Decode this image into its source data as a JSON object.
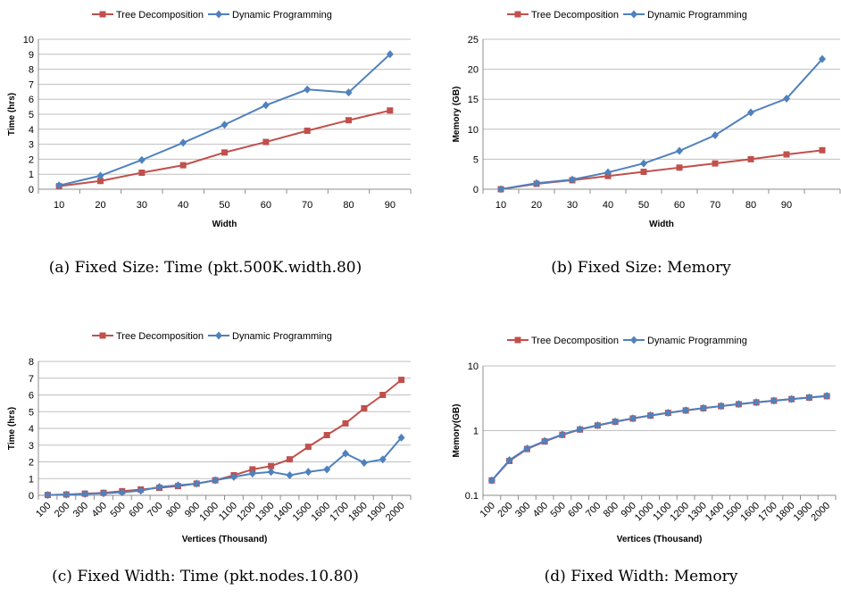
{
  "colors": {
    "td": "#c0504d",
    "dp": "#4f81bd"
  },
  "chart_data": [
    {
      "id": "a",
      "type": "line",
      "caption": "(a) Fixed Size: Time (pkt.500K.width.80)",
      "xlabel": "Width",
      "ylabel": "Time (hrs)",
      "categories": [
        "10",
        "20",
        "30",
        "40",
        "50",
        "60",
        "70",
        "80",
        "90"
      ],
      "ylim": [
        0,
        10
      ],
      "yticks": [
        0,
        1,
        2,
        3,
        4,
        5,
        6,
        7,
        8,
        9,
        10
      ],
      "yscale": "linear",
      "legend": "top",
      "grid": true,
      "series": [
        {
          "name": "Tree Decomposition",
          "marker": "square",
          "values": [
            0.2,
            0.55,
            1.1,
            1.6,
            2.45,
            3.15,
            3.9,
            4.6,
            5.25
          ]
        },
        {
          "name": "Dynamic Programming",
          "marker": "diamond",
          "values": [
            0.25,
            0.9,
            1.95,
            3.1,
            4.3,
            5.6,
            6.65,
            6.45,
            9.0
          ]
        }
      ]
    },
    {
      "id": "b",
      "type": "line",
      "caption": "(b) Fixed Size: Memory",
      "xlabel": "Width",
      "ylabel": "Memory (GB)",
      "categories": [
        "10",
        "20",
        "30",
        "40",
        "50",
        "60",
        "70",
        "80",
        "90",
        ""
      ],
      "ylim": [
        0,
        25
      ],
      "yticks": [
        0,
        5,
        10,
        15,
        20,
        25
      ],
      "yscale": "linear",
      "legend": "top",
      "grid": true,
      "series": [
        {
          "name": "Tree Decomposition",
          "marker": "square",
          "values": [
            0.0,
            0.9,
            1.5,
            2.2,
            2.9,
            3.6,
            4.3,
            5.0,
            5.8,
            6.5
          ]
        },
        {
          "name": "Dynamic Programming",
          "marker": "diamond",
          "values": [
            0.0,
            1.0,
            1.6,
            2.8,
            4.3,
            6.4,
            9.0,
            12.8,
            15.1,
            21.7
          ]
        }
      ]
    },
    {
      "id": "c",
      "type": "line",
      "caption": "(c) Fixed Width: Time (pkt.nodes.10.80)",
      "xlabel": "Vertices (Thousand)",
      "ylabel": "Time (hrs)",
      "categories": [
        "100",
        "200",
        "300",
        "400",
        "500",
        "600",
        "700",
        "800",
        "900",
        "1000",
        "1100",
        "1200",
        "1300",
        "1400",
        "1500",
        "1600",
        "1700",
        "1800",
        "1900",
        "2000"
      ],
      "ylim": [
        0,
        8
      ],
      "yticks": [
        0,
        1,
        2,
        3,
        4,
        5,
        6,
        7,
        8
      ],
      "yscale": "linear",
      "legend": "top",
      "grid": true,
      "series": [
        {
          "name": "Tree Decomposition",
          "marker": "square",
          "values": [
            0.02,
            0.05,
            0.1,
            0.15,
            0.25,
            0.35,
            0.45,
            0.55,
            0.7,
            0.9,
            1.2,
            1.55,
            1.75,
            2.15,
            2.9,
            3.6,
            4.3,
            5.2,
            6.0,
            6.9
          ]
        },
        {
          "name": "Dynamic Programming",
          "marker": "diamond",
          "values": [
            0.02,
            0.04,
            0.08,
            0.12,
            0.18,
            0.28,
            0.5,
            0.6,
            0.7,
            0.9,
            1.1,
            1.3,
            1.4,
            1.2,
            1.4,
            1.55,
            2.5,
            1.95,
            2.15,
            3.45
          ]
        }
      ]
    },
    {
      "id": "d",
      "type": "line",
      "caption": "(d) Fixed Width: Memory",
      "xlabel": "Vertices (Thousand)",
      "ylabel": "Memory(GB)",
      "categories": [
        "100",
        "200",
        "300",
        "400",
        "500",
        "600",
        "700",
        "800",
        "900",
        "1000",
        "1100",
        "1200",
        "1300",
        "1400",
        "1500",
        "1600",
        "1700",
        "1800",
        "1900",
        "2000"
      ],
      "ylim": [
        0.1,
        10
      ],
      "yticks": [
        0.1,
        1,
        10
      ],
      "ytick_labels": [
        "0.1",
        "1",
        "10"
      ],
      "yscale": "log",
      "legend": "top",
      "grid": true,
      "series": [
        {
          "name": "Tree Decomposition",
          "marker": "square",
          "values": [
            0.17,
            0.34,
            0.52,
            0.68,
            0.86,
            1.04,
            1.2,
            1.37,
            1.54,
            1.71,
            1.88,
            2.05,
            2.22,
            2.39,
            2.56,
            2.73,
            2.9,
            3.07,
            3.24,
            3.41
          ]
        },
        {
          "name": "Dynamic Programming",
          "marker": "diamond",
          "values": [
            0.17,
            0.35,
            0.53,
            0.69,
            0.87,
            1.05,
            1.21,
            1.38,
            1.55,
            1.72,
            1.89,
            2.06,
            2.23,
            2.4,
            2.57,
            2.74,
            2.91,
            3.08,
            3.25,
            3.45
          ]
        }
      ]
    }
  ]
}
